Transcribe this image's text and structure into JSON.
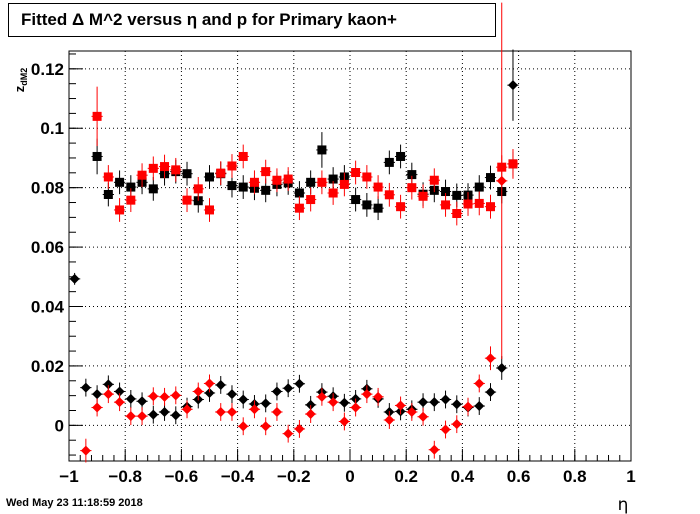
{
  "chart_data": {
    "type": "scatter",
    "title": "Fitted Δ M^2 versus η and p for Primary kaon+",
    "xlabel": "η",
    "ylabel": "z_{dM2}",
    "xlim": [
      -1,
      1
    ],
    "ylim": [
      -0.012,
      0.126
    ],
    "grid": true,
    "x_ticks": [
      -1,
      -0.8,
      -0.6,
      -0.4,
      -0.2,
      0,
      0.2,
      0.4,
      0.6,
      0.8,
      1
    ],
    "x_tick_labels": [
      "−1",
      "−0.8",
      "−0.6",
      "−0.4",
      "−0.2",
      "0",
      "0.2",
      "0.4",
      "0.6",
      "0.8",
      "1"
    ],
    "y_ticks": [
      0,
      0.02,
      0.04,
      0.06,
      0.08,
      0.1,
      0.12
    ],
    "y_tick_labels": [
      "0",
      "0.02",
      "0.04",
      "0.06",
      "0.08",
      "0.1",
      "0.12"
    ],
    "x": [
      -0.98,
      -0.94,
      -0.9,
      -0.86,
      -0.82,
      -0.78,
      -0.74,
      -0.7,
      -0.66,
      -0.62,
      -0.58,
      -0.54,
      -0.5,
      -0.46,
      -0.42,
      -0.38,
      -0.34,
      -0.3,
      -0.26,
      -0.22,
      -0.18,
      -0.14,
      -0.1,
      -0.06,
      -0.02,
      0.02,
      0.06,
      0.1,
      0.14,
      0.18,
      0.22,
      0.26,
      0.3,
      0.34,
      0.38,
      0.42,
      0.46,
      0.5,
      0.54,
      0.58,
      0.62,
      0.66,
      0.7,
      0.74,
      0.78,
      0.82,
      0.86,
      0.9,
      0.94,
      0.98
    ],
    "series": [
      {
        "color": "#000000",
        "marker": "square",
        "values": [
          null,
          null,
          0.0905,
          0.0777,
          0.0818,
          0.0802,
          0.0818,
          0.0796,
          0.0847,
          0.0854,
          0.0847,
          0.0756,
          0.0836,
          0.0847,
          0.0807,
          0.0802,
          0.0798,
          0.0791,
          0.0811,
          0.0816,
          0.0782,
          0.0818,
          0.0927,
          0.0829,
          0.0836,
          0.076,
          0.0742,
          0.0731,
          0.0885,
          0.0905,
          0.0844,
          0.0778,
          0.0791,
          0.0787,
          0.0774,
          0.0775,
          0.0802,
          0.0834,
          0.0787,
          0.088,
          null,
          null,
          null,
          null,
          null,
          null,
          null,
          null,
          null,
          null
        ],
        "errors": [
          null,
          null,
          0.006,
          0.004,
          0.004,
          0.004,
          0.004,
          0.004,
          0.004,
          0.004,
          0.004,
          0.004,
          0.004,
          0.004,
          0.004,
          0.004,
          0.004,
          0.004,
          0.004,
          0.004,
          0.004,
          0.004,
          0.006,
          0.004,
          0.004,
          0.004,
          0.004,
          0.004,
          0.004,
          0.004,
          0.004,
          0.004,
          0.004,
          0.004,
          0.004,
          0.004,
          0.004,
          0.004,
          0.004,
          0.004,
          null,
          null,
          null,
          null,
          null,
          null,
          null,
          null,
          null,
          null
        ]
      },
      {
        "color": "#ff0000",
        "marker": "square",
        "values": [
          null,
          null,
          0.104,
          0.0836,
          0.0725,
          0.0758,
          0.0842,
          0.0865,
          0.0871,
          0.086,
          0.0758,
          0.0796,
          0.0725,
          0.0849,
          0.0873,
          0.0905,
          0.0818,
          0.0854,
          0.0825,
          0.0829,
          0.0731,
          0.076,
          0.0818,
          0.0782,
          0.0811,
          0.0851,
          0.0836,
          0.0802,
          0.0776,
          0.0736,
          0.08,
          0.0771,
          0.0825,
          0.0742,
          0.0713,
          0.0745,
          0.0747,
          0.0736,
          0.0869,
          0.088,
          null,
          null,
          null,
          null,
          null,
          null,
          null,
          null,
          null,
          null
        ],
        "errors": [
          null,
          null,
          0.01,
          0.004,
          0.004,
          0.004,
          0.004,
          0.004,
          0.004,
          0.004,
          0.004,
          0.004,
          0.004,
          0.004,
          0.004,
          0.004,
          0.004,
          0.004,
          0.004,
          0.004,
          0.004,
          0.004,
          0.004,
          0.004,
          0.004,
          0.004,
          0.004,
          0.004,
          0.004,
          0.004,
          0.004,
          0.004,
          0.004,
          0.004,
          0.004,
          0.004,
          0.004,
          0.004,
          0.004,
          0.005,
          null,
          null,
          null,
          null,
          null,
          null,
          null,
          null,
          null,
          null
        ]
      },
      {
        "color": "#000000",
        "marker": "diamond",
        "values": [
          0.0493,
          0.0127,
          0.0105,
          0.0138,
          0.0114,
          0.0089,
          0.0081,
          0.0036,
          0.0045,
          0.0034,
          0.0063,
          0.0087,
          0.0109,
          0.0136,
          0.0105,
          0.0087,
          0.0072,
          0.0074,
          0.0114,
          0.0125,
          0.014,
          0.0069,
          0.0112,
          0.0098,
          0.0076,
          0.0089,
          0.0123,
          0.0089,
          0.0045,
          0.0047,
          0.0054,
          0.0078,
          0.0078,
          0.0087,
          0.0071,
          0.006,
          0.0065,
          0.0112,
          0.0193,
          0.1145,
          null,
          null,
          null,
          null,
          null,
          null,
          null,
          null,
          null,
          null
        ],
        "errors": [
          0.002,
          0.003,
          0.003,
          0.003,
          0.003,
          0.003,
          0.003,
          0.003,
          0.003,
          0.003,
          0.003,
          0.003,
          0.003,
          0.003,
          0.003,
          0.003,
          0.003,
          0.003,
          0.003,
          0.003,
          0.003,
          0.003,
          0.003,
          0.003,
          0.003,
          0.003,
          0.003,
          0.003,
          0.003,
          0.003,
          0.003,
          0.003,
          0.003,
          0.003,
          0.003,
          0.003,
          0.003,
          0.003,
          0.004,
          0.012,
          null,
          null,
          null,
          null,
          null,
          null,
          null,
          null,
          null,
          null
        ]
      },
      {
        "color": "#ff0000",
        "marker": "diamond",
        "values": [
          null,
          -0.0085,
          0.006,
          0.0105,
          0.0078,
          0.0031,
          0.0031,
          0.0098,
          0.0096,
          0.0101,
          0.0054,
          0.0114,
          0.0141,
          0.0045,
          0.0045,
          -0.0003,
          0.0054,
          -0.0003,
          0.0045,
          -0.0028,
          -0.0012,
          0.0038,
          0.0096,
          0.0078,
          0.0013,
          0.006,
          0.0105,
          0.0096,
          0.0018,
          0.0067,
          0.0045,
          0.0029,
          -0.0082,
          -0.0014,
          0.0004,
          0.0063,
          0.0141,
          0.0226,
          0.0823,
          null,
          null,
          null,
          null,
          null,
          null,
          null,
          null,
          null,
          null,
          null
        ],
        "errors": [
          null,
          0.004,
          0.003,
          0.003,
          0.003,
          0.003,
          0.003,
          0.003,
          0.003,
          0.003,
          0.003,
          0.003,
          0.003,
          0.003,
          0.003,
          0.003,
          0.003,
          0.003,
          0.003,
          0.003,
          0.003,
          0.003,
          0.003,
          0.003,
          0.003,
          0.003,
          0.003,
          0.003,
          0.003,
          0.003,
          0.003,
          0.003,
          0.003,
          0.003,
          0.003,
          0.003,
          0.003,
          0.004,
          0.06,
          null,
          null,
          null,
          null,
          null,
          null,
          null,
          null,
          null,
          null,
          null
        ]
      }
    ]
  },
  "footer": {
    "timestamp": "Wed May 23 11:18:59 2018"
  }
}
